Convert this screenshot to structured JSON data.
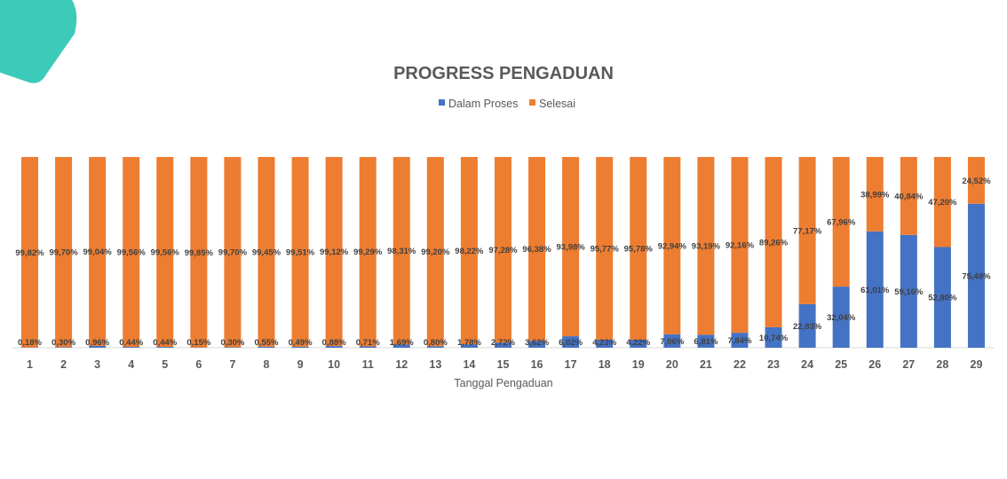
{
  "colors": {
    "dalam_proses": "#4472C4",
    "selesai": "#ED7D31",
    "decor": "#3CCBB9"
  },
  "chart_data": {
    "type": "bar",
    "stacked": true,
    "percent_stacked": true,
    "title": "PROGRESS PENGADUAN",
    "xlabel": "Tanggal Pengaduan",
    "ylabel": "",
    "ylim": [
      0,
      100
    ],
    "legend_position": "top",
    "grid": false,
    "categories": [
      "1",
      "2",
      "3",
      "4",
      "5",
      "6",
      "7",
      "8",
      "9",
      "10",
      "11",
      "12",
      "13",
      "14",
      "15",
      "16",
      "17",
      "18",
      "19",
      "20",
      "21",
      "22",
      "23",
      "24",
      "25",
      "26",
      "27",
      "28",
      "29"
    ],
    "series": [
      {
        "name": "Dalam Proses",
        "color": "#4472C4",
        "values": [
          0.18,
          0.3,
          0.96,
          0.44,
          0.44,
          0.15,
          0.3,
          0.55,
          0.49,
          0.88,
          0.71,
          1.69,
          0.8,
          1.78,
          2.72,
          3.62,
          6.02,
          4.23,
          4.22,
          7.06,
          6.81,
          7.84,
          10.74,
          22.83,
          32.04,
          61.01,
          59.16,
          52.8,
          75.48
        ],
        "labels": [
          "0,18%",
          "0,30%",
          "0,96%",
          "0,44%",
          "0,44%",
          "0,15%",
          "0,30%",
          "0,55%",
          "0,49%",
          "0,88%",
          "0,71%",
          "1,69%",
          "0,80%",
          "1,78%",
          "2,72%",
          "3,62%",
          "6,02%",
          "4,23%",
          "4,22%",
          "7,06%",
          "6,81%",
          "7,84%",
          "10,74%",
          "22,83%",
          "32,04%",
          "61,01%",
          "59,16%",
          "52,80%",
          "75,48%"
        ]
      },
      {
        "name": "Selesai",
        "color": "#ED7D31",
        "values": [
          99.82,
          99.7,
          99.04,
          99.56,
          99.56,
          99.85,
          99.7,
          99.45,
          99.51,
          99.12,
          99.29,
          98.31,
          99.2,
          98.22,
          97.28,
          96.38,
          93.98,
          95.77,
          95.78,
          92.94,
          93.19,
          92.16,
          89.26,
          77.17,
          67.96,
          38.99,
          40.84,
          47.2,
          24.52
        ],
        "labels": [
          "99,82%",
          "99,70%",
          "99,04%",
          "99,56%",
          "99,56%",
          "99,85%",
          "99,70%",
          "99,45%",
          "99,51%",
          "99,12%",
          "99,29%",
          "98,31%",
          "99,20%",
          "98,22%",
          "97,28%",
          "96,38%",
          "93,98%",
          "95,77%",
          "95,78%",
          "92,94%",
          "93,19%",
          "92,16%",
          "89,26%",
          "77,17%",
          "67,96%",
          "38,99%",
          "40,84%",
          "47,20%",
          "24,52%"
        ]
      }
    ]
  }
}
